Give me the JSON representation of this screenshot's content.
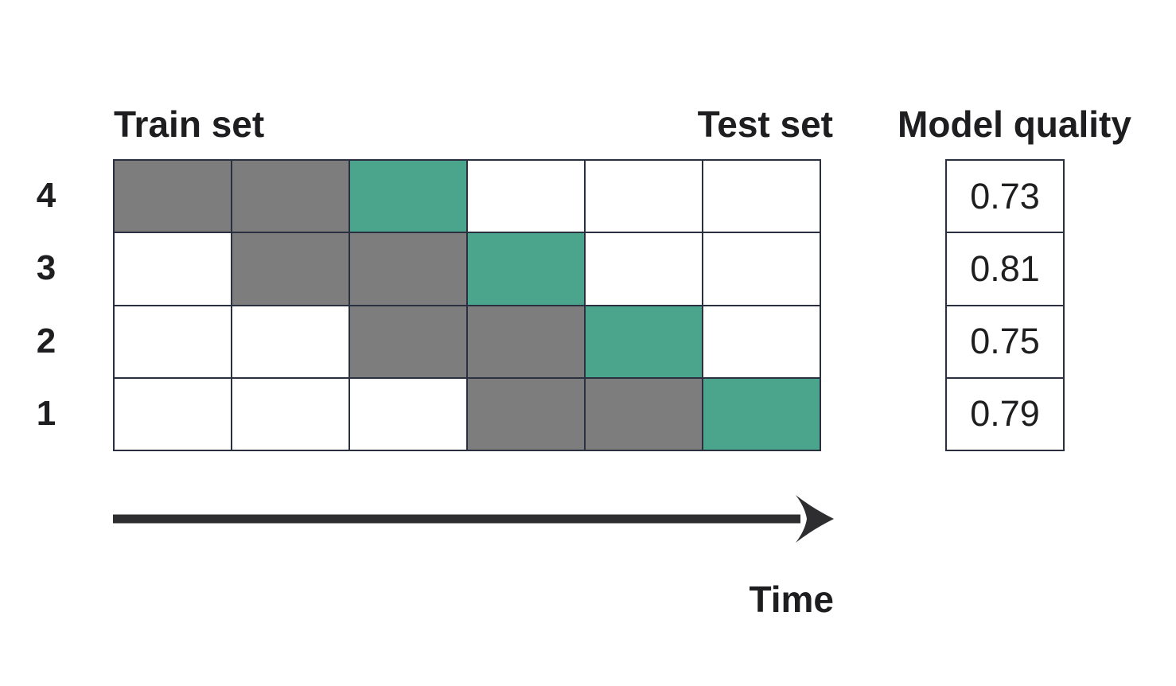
{
  "title_labels": {
    "train_set": "Train set",
    "test_set": "Test set",
    "model_quality": "Model quality"
  },
  "time_axis": {
    "label": "Time"
  },
  "grid": {
    "rows": 4,
    "columns": 6
  },
  "folds": [
    {
      "row_label": "4",
      "cells": [
        "train",
        "train",
        "test",
        "empty",
        "empty",
        "empty"
      ],
      "model_quality": "0.73"
    },
    {
      "row_label": "3",
      "cells": [
        "empty",
        "train",
        "train",
        "test",
        "empty",
        "empty"
      ],
      "model_quality": "0.81"
    },
    {
      "row_label": "2",
      "cells": [
        "empty",
        "empty",
        "train",
        "train",
        "test",
        "empty"
      ],
      "model_quality": "0.75"
    },
    {
      "row_label": "1",
      "cells": [
        "empty",
        "empty",
        "empty",
        "train",
        "train",
        "test"
      ],
      "model_quality": "0.79"
    }
  ],
  "colors": {
    "train_cell": "#7d7d7d",
    "test_cell": "#4aa58c",
    "grid_border": "#2b3040",
    "text": "#1e1e20",
    "arrow": "#2e2e30",
    "background": "#ffffff"
  }
}
